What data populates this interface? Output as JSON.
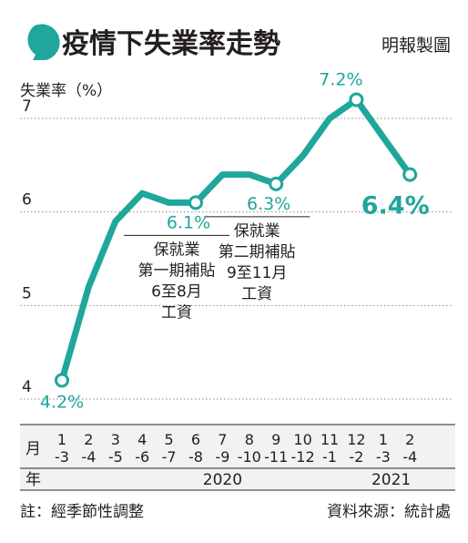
{
  "header": {
    "title": "疫情下失業率走勢",
    "credit": "明報製圖",
    "accent_color": "#1fa79b",
    "icon": "speech-bubble-icon"
  },
  "chart_data": {
    "type": "line",
    "ylabel": "失業率（%）",
    "ylim": [
      4,
      7
    ],
    "yticks": [
      4,
      5,
      6,
      7
    ],
    "x_row_label": "月",
    "year_row_label": "年",
    "x_top": [
      "1",
      "2",
      "3",
      "4",
      "5",
      "6",
      "7",
      "8",
      "9",
      "10",
      "11",
      "12",
      "1",
      "2"
    ],
    "x_bottom": [
      "-3",
      "-4",
      "-5",
      "-6",
      "-7",
      "-8",
      "-9",
      "-10",
      "-11",
      "-12",
      "-1",
      "-2",
      "-3",
      "-4"
    ],
    "years": [
      {
        "label": "2020",
        "index": 6
      },
      {
        "label": "2021",
        "index": 12.3
      }
    ],
    "series": [
      {
        "values": [
          4.2,
          5.2,
          5.9,
          6.2,
          6.1,
          6.1,
          6.4,
          6.4,
          6.3,
          6.6,
          7.0,
          7.2,
          6.8,
          6.4
        ]
      }
    ],
    "markers": [
      {
        "index": 0,
        "label": "4.2%"
      },
      {
        "index": 5,
        "label": "6.1%"
      },
      {
        "index": 8,
        "label": "6.3%"
      },
      {
        "index": 11,
        "label": "7.2%"
      },
      {
        "index": 13,
        "label": "6.4%"
      }
    ],
    "annotations": [
      {
        "index": 5,
        "lines": [
          "保就業",
          "第一期補貼",
          "6至8月",
          "工資"
        ]
      },
      {
        "index": 8,
        "lines": [
          "保就業",
          "第二期補貼",
          "9至11月",
          "工資"
        ]
      }
    ]
  },
  "footer": {
    "note": "註：經季節性調整",
    "source": "資料來源：統計處"
  }
}
